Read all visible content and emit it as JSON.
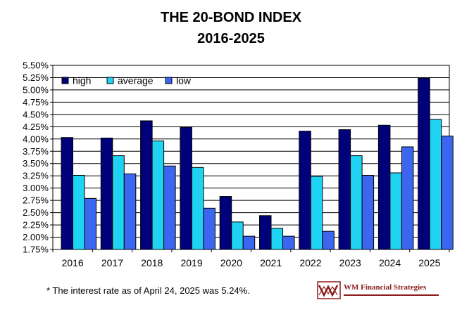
{
  "title_line1": "THE 20-BOND INDEX",
  "title_line2": "2016-2025",
  "footnote": "* The interest rate as of April 24, 2025 was 5.24%.",
  "logo_text": "WM Financial Strategies",
  "colors": {
    "high": "#00007a",
    "average": "#1fd4f3",
    "low": "#3c66f0",
    "logo": "#8b1a1a"
  },
  "chart_data": {
    "type": "bar",
    "title": "THE 20-BOND INDEX 2016-2025",
    "categories": [
      "2016",
      "2017",
      "2018",
      "2019",
      "2020",
      "2021",
      "2022",
      "2023",
      "2024",
      "2025"
    ],
    "series": [
      {
        "name": "high",
        "values": [
          4.03,
          4.02,
          4.37,
          4.24,
          2.83,
          2.44,
          4.16,
          4.19,
          4.28,
          5.24
        ]
      },
      {
        "name": "average",
        "values": [
          3.26,
          3.66,
          3.96,
          3.42,
          2.31,
          2.18,
          3.24,
          3.66,
          3.31,
          4.4
        ]
      },
      {
        "name": "low",
        "values": [
          2.79,
          3.29,
          3.45,
          2.59,
          2.02,
          2.02,
          2.12,
          3.26,
          3.84,
          4.06
        ]
      }
    ],
    "ylim": [
      1.75,
      5.5
    ],
    "yticks": [
      "1.75%",
      "2.00%",
      "2.25%",
      "2.50%",
      "2.75%",
      "3.00%",
      "3.25%",
      "3.50%",
      "3.75%",
      "4.00%",
      "4.25%",
      "4.50%",
      "4.75%",
      "5.00%",
      "5.25%",
      "5.50%"
    ],
    "grid": true,
    "legend": "top-left"
  }
}
